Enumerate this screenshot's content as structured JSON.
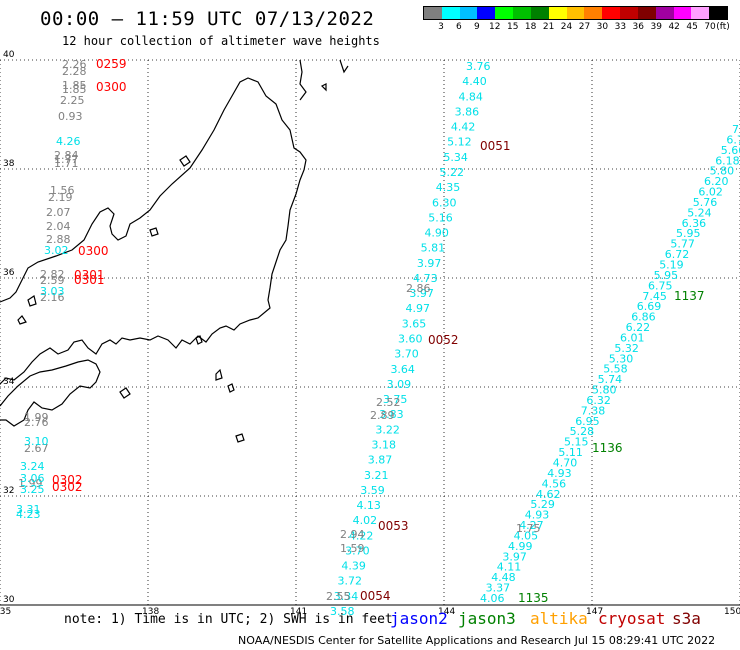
{
  "title": "00:00 – 11:59 UTC 07/13/2022",
  "subtitle": "12 hour collection of altimeter wave heights",
  "legend": {
    "unit": "(ft)",
    "colors": [
      "#7f7f7f",
      "#00ffff",
      "#00bfff",
      "#0000ff",
      "#00ff00",
      "#00c000",
      "#008000",
      "#ffff00",
      "#ffc000",
      "#ff8000",
      "#ff0000",
      "#c00000",
      "#800000",
      "#a000a0",
      "#ff00ff",
      "#ffa0ff",
      "#000000"
    ],
    "labels": [
      "3",
      "6",
      "9",
      "12",
      "15",
      "18",
      "21",
      "24",
      "27",
      "30",
      "33",
      "36",
      "39",
      "42",
      "45",
      "70"
    ]
  },
  "axes": {
    "lat_labels": [
      "40",
      "38",
      "36",
      "34",
      "32",
      "30"
    ],
    "lon_labels": [
      "135",
      "138",
      "141",
      "144",
      "147",
      "150"
    ]
  },
  "colors": {
    "gray": "#808080",
    "cyan": "#00e0e8",
    "red": "#ff0000",
    "darkred": "#800000",
    "green": "#008000"
  },
  "tracks": {
    "gray_left": [
      "2.26",
      "2.28",
      "1.85",
      "1.85",
      "2.25",
      "0.93",
      "2.84",
      "1.77",
      "1.71",
      "1.56",
      "2.19",
      "2.07",
      "2.04",
      "2.88",
      "2.82",
      "2.59",
      "2.16",
      "1.99",
      "2.76",
      "2.67",
      "1.99"
    ],
    "cyan_left": [
      "4.26",
      "3.02",
      "3.03",
      "3.10",
      "3.24",
      "3.06",
      "3.25",
      "3.31",
      "4.23"
    ],
    "red_left": [
      "0259",
      "0300",
      "0300",
      "0301",
      "0301",
      "0302",
      "0302"
    ],
    "cyan_center": [
      "3.76",
      "4.40",
      "4.84",
      "3.86",
      "4.42",
      "5.12",
      "5.34",
      "5.22",
      "4.35",
      "6.30",
      "5.16",
      "4.90",
      "5.81",
      "3.97",
      "4.73",
      "3.97",
      "4.97",
      "3.65",
      "3.60",
      "3.70",
      "3.64",
      "3.09",
      "3.75",
      "3.83",
      "3.22",
      "3.18",
      "3.87",
      "3.21",
      "3.59",
      "4.13",
      "4.02",
      "4.22",
      "3.70",
      "4.39",
      "3.72",
      "3.34",
      "3.58"
    ],
    "gray_center": [
      "2.86",
      "2.52",
      "2.89",
      "2.94",
      "1.59",
      "2.55"
    ],
    "darkred_center": [
      "0051",
      "0052",
      "0053",
      "0054"
    ],
    "cyan_right": [
      "7",
      "6.7",
      "5.66",
      "6.18",
      "5.80",
      "6.20",
      "6.02",
      "5.76",
      "5.24",
      "6.36",
      "5.95",
      "5.77",
      "6.72",
      "5.19",
      "5.95",
      "6.75",
      "7.45",
      "6.69",
      "6.86",
      "6.22",
      "6.01",
      "5.32",
      "5.30",
      "5.58",
      "5.74",
      "5.80",
      "6.32",
      "7.38",
      "6.95",
      "5.28",
      "5.15",
      "5.11",
      "4.70",
      "4.93",
      "4.56",
      "4.62",
      "5.29",
      "4.93",
      "4.27",
      "4.05",
      "4.99",
      "3.97",
      "4.11",
      "4.48",
      "3.37",
      "4.06"
    ],
    "gray_right": [
      "1.75"
    ],
    "green_right": [
      "1137",
      "1136",
      "1135"
    ]
  },
  "note": "note:  1) Time is in UTC;  2) SWH is in feet",
  "satellites": [
    {
      "name": "jason2",
      "color": "#0000ff"
    },
    {
      "name": "jason3",
      "color": "#008000"
    },
    {
      "name": "altika",
      "color": "#ffa000"
    },
    {
      "name": "cryosat",
      "color": "#c00000"
    },
    {
      "name": "s3a",
      "color": "#800000"
    }
  ],
  "footer": "NOAA/NESDIS Center for Satellite Applications and Research    Jul 15 08:29:41 UTC 2022"
}
